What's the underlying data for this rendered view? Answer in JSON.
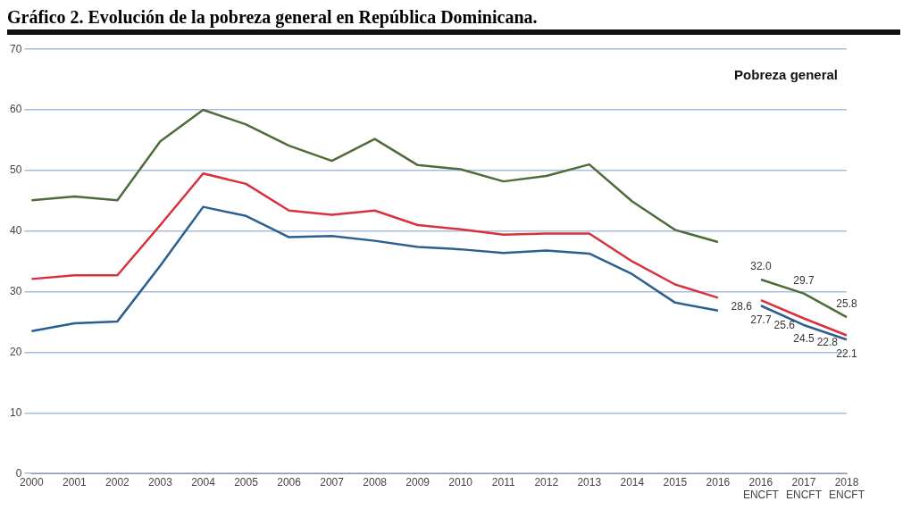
{
  "chart_data": {
    "type": "line",
    "title": "Gráfico 2. Evolución de la pobreza general en República Dominicana.",
    "categories": [
      "2000",
      "2001",
      "2002",
      "2003",
      "2004",
      "2005",
      "2006",
      "2007",
      "2008",
      "2009",
      "2010",
      "2011",
      "2012",
      "2013",
      "2014",
      "2015",
      "2016",
      "2016\nENCFT",
      "2017\nENCFT",
      "2018\nENCFT"
    ],
    "series": [
      {
        "color": "#4e6b3a",
        "values": [
          45.1,
          45.7,
          45.1,
          54.8,
          60,
          57.6,
          54.1,
          51.6,
          55.2,
          50.9,
          50.2,
          48.2,
          49.1,
          51,
          44.9,
          40.2,
          38.2,
          null,
          null,
          null
        ]
      },
      {
        "color": "#d9303c",
        "values": [
          32.1,
          32.7,
          32.7,
          41,
          49.5,
          47.8,
          43.4,
          42.7,
          43.4,
          41,
          40.3,
          39.4,
          39.6,
          39.6,
          35,
          31.2,
          29,
          null,
          null,
          null
        ]
      },
      {
        "color": "#2a5f8f",
        "values": [
          23.5,
          24.8,
          25.1,
          34.3,
          44,
          42.5,
          39,
          39.2,
          38.4,
          37.4,
          37,
          36.4,
          36.8,
          36.3,
          32.9,
          28.2,
          26.9,
          null,
          null,
          null
        ]
      },
      {
        "color": "#4e6b3a",
        "values": [
          null,
          null,
          null,
          null,
          null,
          null,
          null,
          null,
          null,
          null,
          null,
          null,
          null,
          null,
          null,
          null,
          null,
          32.0,
          29.7,
          25.8
        ],
        "value_labels": [
          null,
          null,
          null,
          null,
          null,
          null,
          null,
          null,
          null,
          null,
          null,
          null,
          null,
          null,
          null,
          null,
          null,
          "32.0",
          "29.7",
          "25.8"
        ]
      },
      {
        "color": "#d9303c",
        "values": [
          null,
          null,
          null,
          null,
          null,
          null,
          null,
          null,
          null,
          null,
          null,
          null,
          null,
          null,
          null,
          null,
          null,
          28.6,
          25.6,
          22.8
        ],
        "value_labels": [
          null,
          null,
          null,
          null,
          null,
          null,
          null,
          null,
          null,
          null,
          null,
          null,
          null,
          null,
          null,
          null,
          null,
          "28.6",
          "25.6",
          "22.8"
        ]
      },
      {
        "color": "#2a5f8f",
        "values": [
          null,
          null,
          null,
          null,
          null,
          null,
          null,
          null,
          null,
          null,
          null,
          null,
          null,
          null,
          null,
          null,
          null,
          27.7,
          24.5,
          22.1
        ],
        "value_labels": [
          null,
          null,
          null,
          null,
          null,
          null,
          null,
          null,
          null,
          null,
          null,
          null,
          null,
          null,
          null,
          null,
          null,
          "27.7",
          "24.5",
          "22.1"
        ]
      }
    ],
    "ylim": [
      0,
      70
    ],
    "yticks": [
      0,
      10,
      20,
      30,
      40,
      50,
      60,
      70
    ],
    "grid": "y",
    "legend": false,
    "marker": "none",
    "line_style": "solid",
    "annotations": [
      "Pobreza general"
    ]
  }
}
